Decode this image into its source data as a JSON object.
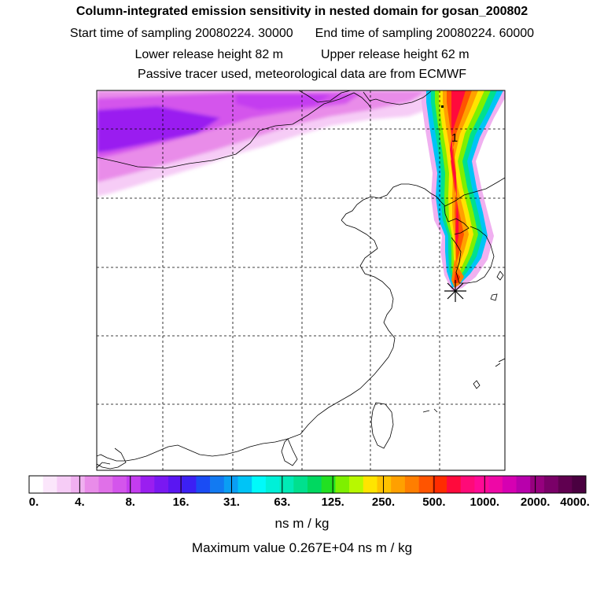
{
  "header": {
    "title": "Column-integrated emission sensitivity in nested domain for gosan_200802",
    "start_label": "Start time of sampling 20080224. 30000",
    "end_label": "End time of sampling 20080224. 60000",
    "lower_label": "Lower release height   82 m",
    "upper_label": "Upper release height   62 m",
    "tracer_label": "Passive tracer used, meteorological data are from ECMWF"
  },
  "map": {
    "point_label": "1",
    "receptor_icon": "asterisk-star-icon"
  },
  "colorbar": {
    "tick_labels": [
      "0.",
      "4.",
      "8.",
      "16.",
      "31.",
      "63.",
      "125.",
      "250.",
      "500.",
      "1000.",
      "2000.",
      "4000."
    ],
    "colors": [
      "#ffffff",
      "#fbe6fb",
      "#f6ccf6",
      "#f0b0f0",
      "#e98ce9",
      "#e070e8",
      "#d455ec",
      "#c43cf0",
      "#9a1ef0",
      "#7a18f2",
      "#5a16f2",
      "#3c20f4",
      "#1a4cf4",
      "#127af2",
      "#0a9ef4",
      "#00c4f6",
      "#00fafa",
      "#00f0d8",
      "#00eab6",
      "#00e08e",
      "#00d860",
      "#22e022",
      "#7ef000",
      "#b8f800",
      "#ffe400",
      "#ffc200",
      "#ffa000",
      "#ff7e00",
      "#ff5400",
      "#ff2c00",
      "#ff0a3c",
      "#ff0a78",
      "#ff0a96",
      "#ee08a6",
      "#d600b2",
      "#b800ac",
      "#96007e",
      "#7a0068",
      "#600050",
      "#4a0040"
    ],
    "units": "ns m / kg"
  },
  "max_value_label": "Maximum value  0.267E+04 ns m / kg"
}
